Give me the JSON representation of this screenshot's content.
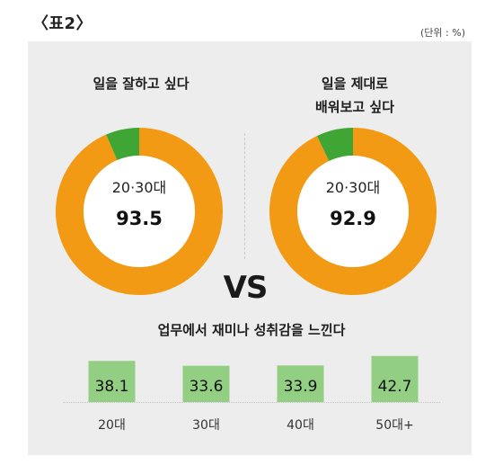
{
  "header": {
    "title": "〈표2〉",
    "unit": "(단위 : %)"
  },
  "chart_data": [
    {
      "type": "pie",
      "title": "일을 잘하고 싶다",
      "center_label": "20·30대",
      "value_label": "93.5",
      "values": [
        93.5,
        6.5
      ],
      "colors": [
        "#f39a14",
        "#3fa535"
      ]
    },
    {
      "type": "pie",
      "title": "일을 제대로\n배워보고 싶다",
      "center_label": "20·30대",
      "value_label": "92.9",
      "values": [
        92.9,
        7.1
      ],
      "colors": [
        "#f39a14",
        "#3fa535"
      ]
    },
    {
      "type": "bar",
      "title": "업무에서 재미나 성취감을 느낀다",
      "categories": [
        "20대",
        "30대",
        "40대",
        "50대+"
      ],
      "values": [
        38.1,
        33.6,
        33.9,
        42.7
      ],
      "color": "#93cf83"
    }
  ],
  "vs_label": "VS"
}
